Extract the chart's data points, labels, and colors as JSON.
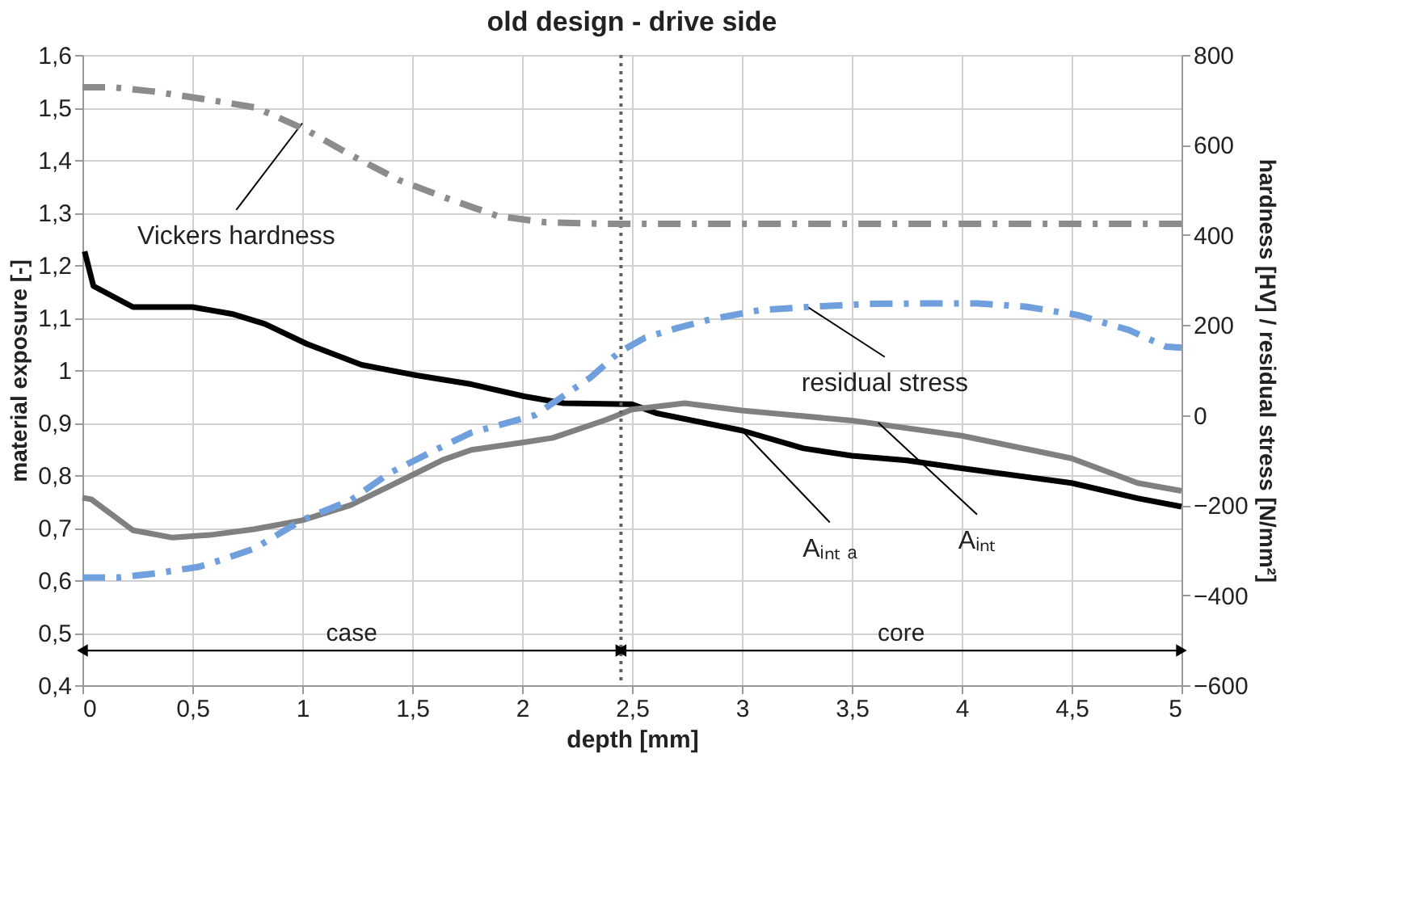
{
  "chart_data": {
    "type": "line",
    "title": "old design - drive side",
    "xlabel": "depth [mm]",
    "ylabel": "material exposure [-]",
    "y2label": "hardness [HV] / residual stress [N/mm²]",
    "xlim": [
      0,
      5
    ],
    "xticks": [
      {
        "value": 0,
        "label": "0"
      },
      {
        "value": 0.5,
        "label": "0,5"
      },
      {
        "value": 1,
        "label": "1"
      },
      {
        "value": 1.5,
        "label": "1,5"
      },
      {
        "value": 2,
        "label": "2"
      },
      {
        "value": 2.5,
        "label": "2,5"
      },
      {
        "value": 3,
        "label": "3"
      },
      {
        "value": 3.5,
        "label": "3,5"
      },
      {
        "value": 4,
        "label": "4"
      },
      {
        "value": 4.5,
        "label": "4,5"
      },
      {
        "value": 5,
        "label": "5"
      }
    ],
    "ylim": [
      0.4,
      1.6
    ],
    "yticks": [
      {
        "value": 0.4,
        "label": "0,4"
      },
      {
        "value": 0.5,
        "label": "0,5"
      },
      {
        "value": 0.6,
        "label": "0,6"
      },
      {
        "value": 0.7,
        "label": "0,7"
      },
      {
        "value": 0.8,
        "label": "0,8"
      },
      {
        "value": 0.9,
        "label": "0,9"
      },
      {
        "value": 1,
        "label": "1"
      },
      {
        "value": 1.1,
        "label": "1,1"
      },
      {
        "value": 1.2,
        "label": "1,2"
      },
      {
        "value": 1.3,
        "label": "1,3"
      },
      {
        "value": 1.4,
        "label": "1,4"
      },
      {
        "value": 1.5,
        "label": "1,5"
      },
      {
        "value": 1.6,
        "label": "1,6"
      }
    ],
    "y2lim": [
      -600,
      800
    ],
    "y2ticks": [
      -600,
      -400,
      -200,
      0,
      200,
      400,
      600,
      800
    ],
    "grid": true,
    "series": [
      {
        "color": "#000000",
        "line_style": "solid",
        "x": [
          0.01,
          0.05,
          0.23,
          0.5,
          0.68,
          0.83,
          1.02,
          1.27,
          1.52,
          1.77,
          2.01,
          2.19,
          2.5,
          2.61,
          3.0,
          3.28,
          3.5,
          3.75,
          4.0,
          4.5,
          4.8,
          5.0
        ],
        "values": [
          1.226,
          1.16,
          1.12,
          1.12,
          1.107,
          1.088,
          1.05,
          1.01,
          0.99,
          0.973,
          0.95,
          0.937,
          0.935,
          0.918,
          0.885,
          0.851,
          0.837,
          0.828,
          0.813,
          0.785,
          0.756,
          0.74
        ]
      },
      {
        "color": "#808080",
        "line_style": "solid",
        "x": [
          0.0,
          0.04,
          0.23,
          0.41,
          0.58,
          0.78,
          1.0,
          1.22,
          1.5,
          1.64,
          1.77,
          2.0,
          2.14,
          2.38,
          2.5,
          2.74,
          3.0,
          3.5,
          4.0,
          4.5,
          4.8,
          5.0
        ],
        "values": [
          0.757,
          0.754,
          0.695,
          0.681,
          0.686,
          0.697,
          0.714,
          0.743,
          0.8,
          0.829,
          0.848,
          0.862,
          0.871,
          0.905,
          0.925,
          0.937,
          0.923,
          0.904,
          0.875,
          0.832,
          0.785,
          0.77
        ]
      },
      {
        "color": "#8c8c8c",
        "line_style": "dashed",
        "axis": "y2",
        "x": [
          0.0,
          0.14,
          0.32,
          0.58,
          0.79,
          1.02,
          1.22,
          1.44,
          1.65,
          1.89,
          2.11,
          2.38,
          3.0,
          4.0,
          5.0
        ],
        "values": [
          728,
          728,
          719,
          700,
          683,
          633,
          578,
          522,
          483,
          442,
          428,
          425,
          425,
          425,
          425
        ]
      },
      {
        "color": "#6f9fdc",
        "line_style": "dashed",
        "axis": "y2",
        "x": [
          0.0,
          0.16,
          0.33,
          0.53,
          0.63,
          0.78,
          1.0,
          1.22,
          1.4,
          1.62,
          1.77,
          2.06,
          2.31,
          2.44,
          2.56,
          2.71,
          2.86,
          3.08,
          3.33,
          3.57,
          3.82,
          4.07,
          4.29,
          4.53,
          4.76,
          4.93,
          5.0
        ],
        "values": [
          -361,
          -361,
          -352,
          -337,
          -322,
          -297,
          -233,
          -189,
          -128,
          -74,
          -39,
          0,
          83,
          139,
          172,
          194,
          213,
          233,
          241,
          247,
          248,
          248,
          241,
          222,
          189,
          152,
          150
        ]
      }
    ],
    "ref_lines": [
      {
        "axis": "x",
        "value": 2.45,
        "color": "#606060",
        "line_style": "dotted"
      }
    ],
    "annotations": [
      "case",
      "core",
      {
        "text": "Vickers hardness",
        "x": 1.0,
        "y": 1.47
      },
      {
        "text": "residual stress",
        "x": 3.3,
        "y": 1.12
      },
      {
        "text": "Aᵢₙₜ ₐ",
        "x": 3.0,
        "y": 0.885
      },
      {
        "text": "Aᵢₙₜ",
        "x": 3.62,
        "y": 0.9
      }
    ]
  }
}
